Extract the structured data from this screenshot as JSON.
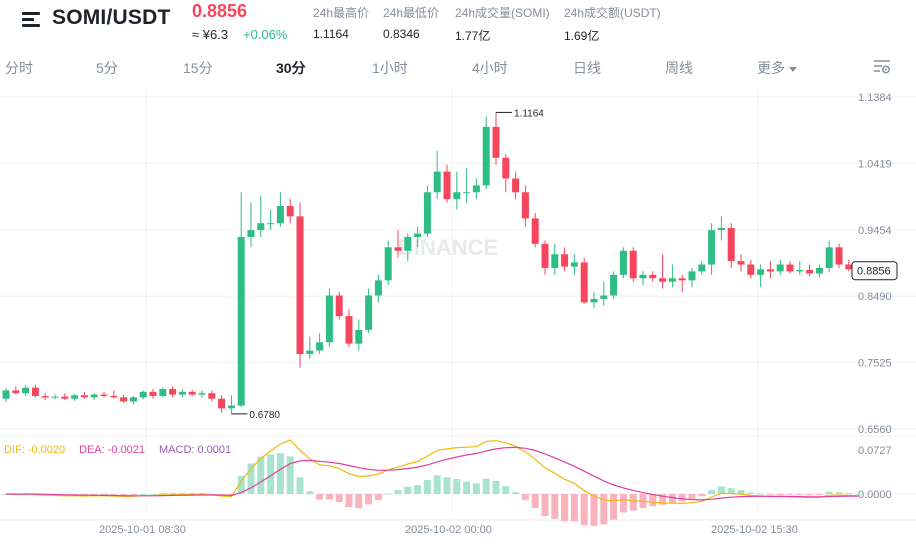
{
  "header": {
    "pair": "SOMI/USDT",
    "price": "0.8856",
    "price_cny": "≈ ¥6.3",
    "change": "+0.06%",
    "stats": [
      {
        "label": "24h最高价",
        "value": "1.1164"
      },
      {
        "label": "24h最低价",
        "value": "0.8346"
      },
      {
        "label": "24h成交量(SOMI)",
        "value": "1.77亿"
      },
      {
        "label": "24h成交额(USDT)",
        "value": "1.69亿"
      }
    ]
  },
  "tabs": [
    "分时",
    "5分",
    "15分",
    "30分",
    "1小时",
    "4小时",
    "日线",
    "周线",
    "更多"
  ],
  "active_tab": "30分",
  "colors": {
    "up": "#2ebd85",
    "down": "#f6465d",
    "dif": "#f0b90b",
    "dea": "#e040a0",
    "macd": "#9b59b6"
  },
  "chart_data": {
    "type": "candlestick",
    "price_axis": {
      "ticks": [
        "1.1384",
        "1.0419",
        "0.9454",
        "0.8490",
        "0.7525",
        "0.6560"
      ],
      "ylim": [
        0.656,
        1.1384
      ]
    },
    "last_price_label": "0.8856",
    "high_marker": "1.1164",
    "low_marker": "0.6780",
    "watermark": "BINANCE",
    "x_labels": [
      "2025-10-01 08:30",
      "2025-10-02 00:00",
      "2025-10-02 15:30"
    ],
    "macd_axis": {
      "ticks": [
        "0.0727",
        "0.0000"
      ]
    },
    "macd_legend": {
      "dif": "DIF: -0.0020",
      "dea": "DEA: -0.0021",
      "macd": "MACD: 0.0001"
    },
    "candles": [
      [
        0.7,
        0.715,
        0.695,
        0.712
      ],
      [
        0.712,
        0.718,
        0.706,
        0.708
      ],
      [
        0.708,
        0.72,
        0.704,
        0.716
      ],
      [
        0.716,
        0.72,
        0.702,
        0.704
      ],
      [
        0.704,
        0.708,
        0.698,
        0.702
      ],
      [
        0.702,
        0.706,
        0.699,
        0.703
      ],
      [
        0.703,
        0.708,
        0.698,
        0.7
      ],
      [
        0.7,
        0.707,
        0.697,
        0.705
      ],
      [
        0.705,
        0.71,
        0.7,
        0.702
      ],
      [
        0.702,
        0.708,
        0.698,
        0.706
      ],
      [
        0.706,
        0.71,
        0.702,
        0.704
      ],
      [
        0.704,
        0.712,
        0.7,
        0.702
      ],
      [
        0.702,
        0.706,
        0.694,
        0.696
      ],
      [
        0.696,
        0.704,
        0.692,
        0.702
      ],
      [
        0.702,
        0.712,
        0.699,
        0.71
      ],
      [
        0.71,
        0.714,
        0.7,
        0.704
      ],
      [
        0.704,
        0.716,
        0.702,
        0.714
      ],
      [
        0.714,
        0.718,
        0.702,
        0.706
      ],
      [
        0.706,
        0.714,
        0.702,
        0.71
      ],
      [
        0.71,
        0.713,
        0.704,
        0.706
      ],
      [
        0.706,
        0.712,
        0.702,
        0.708
      ],
      [
        0.708,
        0.712,
        0.696,
        0.7
      ],
      [
        0.7,
        0.705,
        0.68,
        0.686
      ],
      [
        0.686,
        0.705,
        0.678,
        0.69
      ],
      [
        0.69,
        1.0,
        0.688,
        0.935
      ],
      [
        0.935,
        0.985,
        0.92,
        0.945
      ],
      [
        0.945,
        0.995,
        0.935,
        0.955
      ],
      [
        0.955,
        0.975,
        0.945,
        0.955
      ],
      [
        0.955,
        1.0,
        0.95,
        0.98
      ],
      [
        0.98,
        0.99,
        0.955,
        0.965
      ],
      [
        0.965,
        0.985,
        0.745,
        0.765
      ],
      [
        0.765,
        0.79,
        0.758,
        0.77
      ],
      [
        0.77,
        0.795,
        0.765,
        0.782
      ],
      [
        0.782,
        0.86,
        0.775,
        0.85
      ],
      [
        0.85,
        0.855,
        0.815,
        0.82
      ],
      [
        0.82,
        0.83,
        0.775,
        0.78
      ],
      [
        0.78,
        0.815,
        0.77,
        0.8
      ],
      [
        0.8,
        0.86,
        0.795,
        0.85
      ],
      [
        0.85,
        0.88,
        0.84,
        0.872
      ],
      [
        0.872,
        0.93,
        0.865,
        0.92
      ],
      [
        0.92,
        0.945,
        0.905,
        0.915
      ],
      [
        0.915,
        0.94,
        0.9,
        0.935
      ],
      [
        0.935,
        0.95,
        0.92,
        0.94
      ],
      [
        0.94,
        1.01,
        0.935,
        1.0
      ],
      [
        1.0,
        1.06,
        0.99,
        1.03
      ],
      [
        1.03,
        1.04,
        0.985,
        0.99
      ],
      [
        0.99,
        1.03,
        0.975,
        1.0
      ],
      [
        1.0,
        1.035,
        0.985,
        1.0
      ],
      [
        1.0,
        1.02,
        0.99,
        1.01
      ],
      [
        1.01,
        1.11,
        1.005,
        1.095
      ],
      [
        1.095,
        1.116,
        1.04,
        1.05
      ],
      [
        1.05,
        1.055,
        1.0,
        1.02
      ],
      [
        1.02,
        1.03,
        0.99,
        1.0
      ],
      [
        1.0,
        1.01,
        0.95,
        0.962
      ],
      [
        0.962,
        0.97,
        0.92,
        0.925
      ],
      [
        0.925,
        0.93,
        0.88,
        0.89
      ],
      [
        0.89,
        0.925,
        0.88,
        0.91
      ],
      [
        0.91,
        0.92,
        0.885,
        0.892
      ],
      [
        0.892,
        0.91,
        0.88,
        0.898
      ],
      [
        0.898,
        0.905,
        0.838,
        0.84
      ],
      [
        0.84,
        0.855,
        0.832,
        0.845
      ],
      [
        0.845,
        0.87,
        0.835,
        0.85
      ],
      [
        0.85,
        0.885,
        0.845,
        0.88
      ],
      [
        0.88,
        0.92,
        0.875,
        0.915
      ],
      [
        0.915,
        0.92,
        0.87,
        0.875
      ],
      [
        0.875,
        0.885,
        0.865,
        0.88
      ],
      [
        0.88,
        0.885,
        0.87,
        0.875
      ],
      [
        0.875,
        0.91,
        0.86,
        0.87
      ],
      [
        0.87,
        0.895,
        0.862,
        0.875
      ],
      [
        0.875,
        0.88,
        0.855,
        0.872
      ],
      [
        0.872,
        0.89,
        0.862,
        0.885
      ],
      [
        0.885,
        0.9,
        0.88,
        0.895
      ],
      [
        0.895,
        0.955,
        0.88,
        0.945
      ],
      [
        0.945,
        0.965,
        0.93,
        0.948
      ],
      [
        0.948,
        0.955,
        0.89,
        0.9
      ],
      [
        0.9,
        0.91,
        0.885,
        0.895
      ],
      [
        0.895,
        0.902,
        0.875,
        0.88
      ],
      [
        0.88,
        0.895,
        0.862,
        0.888
      ],
      [
        0.888,
        0.9,
        0.875,
        0.885
      ],
      [
        0.885,
        0.902,
        0.88,
        0.895
      ],
      [
        0.895,
        0.9,
        0.882,
        0.885
      ],
      [
        0.885,
        0.9,
        0.88,
        0.887
      ],
      [
        0.887,
        0.895,
        0.878,
        0.882
      ],
      [
        0.882,
        0.895,
        0.876,
        0.89
      ],
      [
        0.89,
        0.93,
        0.884,
        0.92
      ],
      [
        0.92,
        0.925,
        0.89,
        0.895
      ],
      [
        0.895,
        0.902,
        0.885,
        0.888
      ],
      [
        0.888,
        0.892,
        0.883,
        0.886
      ]
    ]
  }
}
